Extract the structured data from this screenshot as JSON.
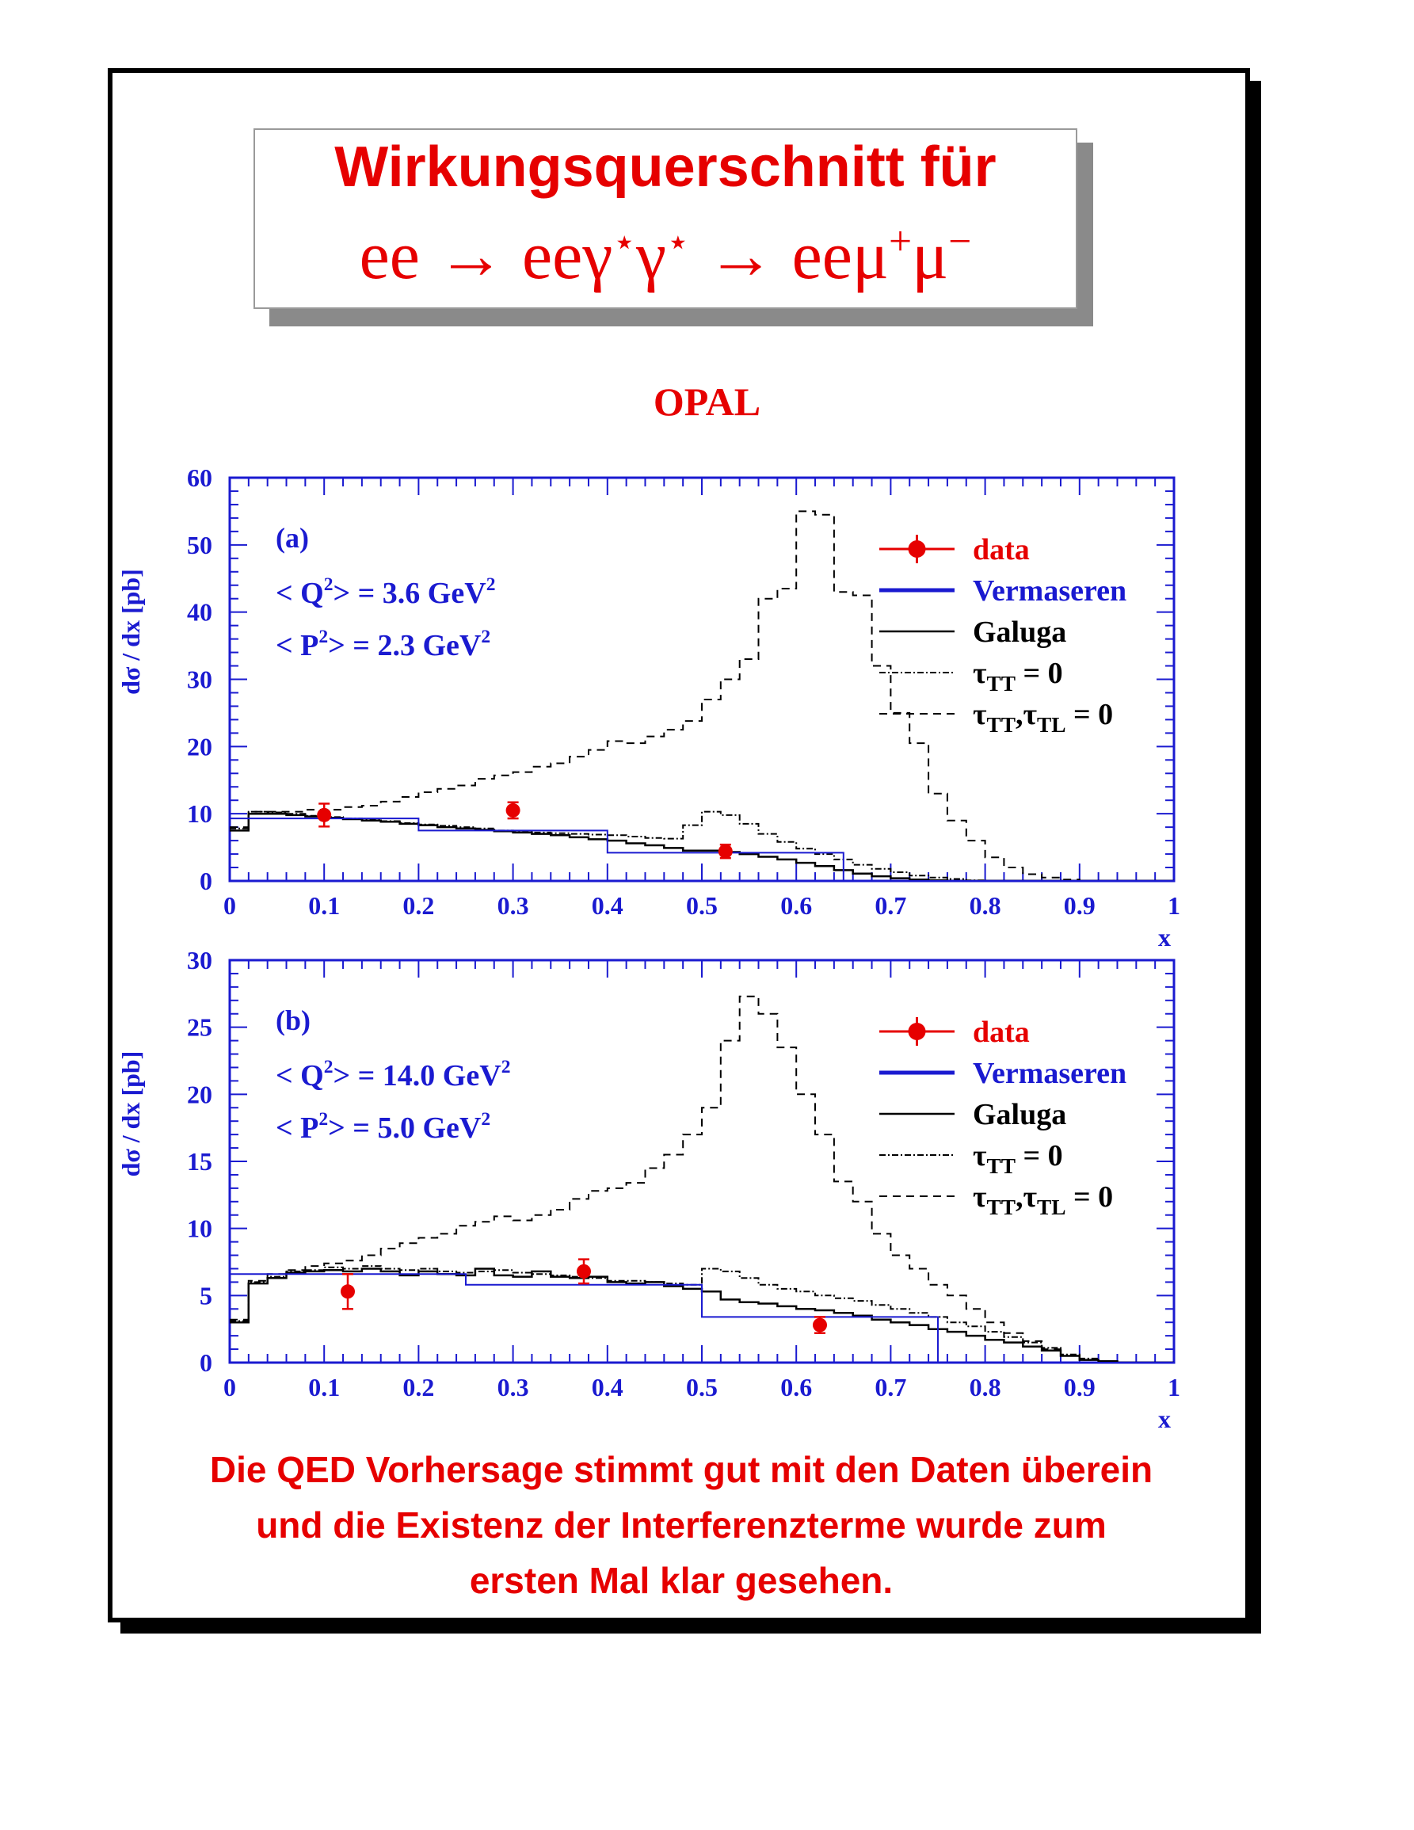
{
  "title": {
    "line1": "Wirkungsquerschnitt für",
    "line2_a": "ee → eeγ",
    "line2_b": "γ",
    "line2_c": " → eeμ",
    "line2_d": "μ",
    "star": "⋆",
    "mu_plus": "+",
    "mu_minus": "−"
  },
  "experiment": "OPAL",
  "footer": [
    "Die QED Vorhersage stimmt gut mit den Daten überein",
    "und die Existenz der Interferenzterme wurde zum",
    "ersten Mal klar gesehen."
  ],
  "legend": {
    "data": "data",
    "vermaseren": "Vermaseren",
    "galuga": "Galuga",
    "tt_tau": "τ",
    "tt_sub": "TT",
    "tt_eq": " = 0",
    "tl_tau1": "τ",
    "tl_sub1": "TT",
    "tl_comma": ",τ",
    "tl_sub2": "TL",
    "tl_eq": " = 0"
  },
  "colors": {
    "red": "#e60000",
    "blue": "#1a1ad0",
    "black": "#000000"
  },
  "chart_data": [
    {
      "type": "line",
      "panel": "(a)",
      "info": [
        {
          "pre": "< Q",
          "sup": "2",
          "post": "> = 3.6 GeV",
          "sup2": "2"
        },
        {
          "pre": "< P",
          "sup": "2",
          "post": "> = 2.3 GeV",
          "sup2": "2"
        }
      ],
      "xlabel": "x",
      "ylabel": "dσ / dx [pb]",
      "xlim": [
        0,
        1
      ],
      "ylim": [
        0,
        60
      ],
      "xticks": [
        "0",
        "0.1",
        "0.2",
        "0.3",
        "0.4",
        "0.5",
        "0.6",
        "0.7",
        "0.8",
        "0.9",
        "1"
      ],
      "yticks": [
        "0",
        "10",
        "20",
        "30",
        "40",
        "50",
        "60"
      ],
      "data_points": [
        {
          "x": 0.1,
          "y": 9.8,
          "err": 1.7
        },
        {
          "x": 0.3,
          "y": 10.5,
          "err": 1.2
        },
        {
          "x": 0.525,
          "y": 4.4,
          "err": 1.0
        }
      ],
      "vermaseren": {
        "edges": [
          0,
          0.2,
          0.4,
          0.65,
          1.0
        ],
        "values": [
          9.3,
          7.5,
          4.2,
          0.0
        ]
      },
      "hist_edges": [
        0,
        0.02,
        0.04,
        0.06,
        0.08,
        0.1,
        0.12,
        0.14,
        0.16,
        0.18,
        0.2,
        0.22,
        0.24,
        0.26,
        0.28,
        0.3,
        0.32,
        0.34,
        0.36,
        0.38,
        0.4,
        0.42,
        0.44,
        0.46,
        0.48,
        0.5,
        0.52,
        0.54,
        0.56,
        0.58,
        0.6,
        0.62,
        0.64,
        0.66,
        0.68,
        0.7,
        0.72,
        0.74,
        0.76,
        0.78,
        0.8,
        0.82,
        0.84,
        0.86,
        0.88,
        0.9,
        0.92,
        0.94,
        0.96,
        0.98,
        1.0
      ],
      "galuga": [
        7.5,
        10.0,
        10.0,
        9.8,
        9.6,
        9.4,
        9.2,
        9.0,
        8.8,
        8.5,
        8.3,
        8.0,
        7.8,
        7.6,
        7.4,
        7.2,
        7.0,
        6.8,
        6.5,
        6.2,
        6.0,
        5.6,
        5.3,
        4.9,
        4.5,
        4.5,
        4.3,
        4.0,
        3.6,
        3.2,
        2.7,
        2.2,
        1.6,
        1.1,
        0.7,
        0.4,
        0.2,
        0.1,
        0.0,
        0.0,
        0.0,
        0.0,
        0.0,
        0.0,
        0.0,
        0.0,
        0.0,
        0.0,
        0.0,
        0.0
      ],
      "tau_tt": [
        7.8,
        10.3,
        10.2,
        10.0,
        9.7,
        9.5,
        9.3,
        9.1,
        8.9,
        8.6,
        8.4,
        8.2,
        8.0,
        7.8,
        7.5,
        7.3,
        7.2,
        7.1,
        7.0,
        6.9,
        6.8,
        6.6,
        6.4,
        6.3,
        8.3,
        10.3,
        9.8,
        8.5,
        7.0,
        5.8,
        4.8,
        4.0,
        3.2,
        2.4,
        1.8,
        1.3,
        0.8,
        0.5,
        0.3,
        0.1,
        0.0,
        0.0,
        0.0,
        0.0,
        0.0,
        0.0,
        0.0,
        0.0,
        0.0,
        0.0
      ],
      "tau_tt_tl": [
        8.0,
        10.3,
        10.3,
        10.3,
        10.6,
        10.6,
        11.0,
        11.2,
        11.8,
        12.5,
        13.2,
        13.7,
        14.2,
        15.2,
        15.7,
        16.2,
        17.0,
        17.5,
        18.5,
        19.5,
        20.8,
        20.5,
        21.5,
        22.5,
        23.8,
        27.0,
        30.0,
        33.0,
        42.0,
        43.5,
        55.0,
        54.5,
        43.0,
        42.5,
        32.0,
        25.0,
        20.5,
        13.0,
        9.0,
        6.0,
        3.5,
        2.0,
        1.0,
        0.5,
        0.2,
        0.0,
        0.0,
        0.0,
        0.0,
        0.0
      ]
    },
    {
      "type": "line",
      "panel": "(b)",
      "info": [
        {
          "pre": "< Q",
          "sup": "2",
          "post": "> = 14.0 GeV",
          "sup2": "2"
        },
        {
          "pre": "< P",
          "sup": "2",
          "post": "> =  5.0 GeV",
          "sup2": "2"
        }
      ],
      "xlabel": "x",
      "ylabel": "dσ / dx [pb]",
      "xlim": [
        0,
        1
      ],
      "ylim": [
        0,
        30
      ],
      "xticks": [
        "0",
        "0.1",
        "0.2",
        "0.3",
        "0.4",
        "0.5",
        "0.6",
        "0.7",
        "0.8",
        "0.9",
        "1"
      ],
      "yticks": [
        "0",
        "5",
        "10",
        "15",
        "20",
        "25",
        "30"
      ],
      "data_points": [
        {
          "x": 0.125,
          "y": 5.3,
          "err": 1.3
        },
        {
          "x": 0.375,
          "y": 6.8,
          "err": 0.9
        },
        {
          "x": 0.625,
          "y": 2.8,
          "err": 0.6
        }
      ],
      "vermaseren": {
        "edges": [
          0,
          0.25,
          0.5,
          0.75,
          1.0
        ],
        "values": [
          6.6,
          5.8,
          3.4,
          0.0
        ]
      },
      "hist_edges": [
        0,
        0.02,
        0.04,
        0.06,
        0.08,
        0.1,
        0.12,
        0.14,
        0.16,
        0.18,
        0.2,
        0.22,
        0.24,
        0.26,
        0.28,
        0.3,
        0.32,
        0.34,
        0.36,
        0.38,
        0.4,
        0.42,
        0.44,
        0.46,
        0.48,
        0.5,
        0.52,
        0.54,
        0.56,
        0.58,
        0.6,
        0.62,
        0.64,
        0.66,
        0.68,
        0.7,
        0.72,
        0.74,
        0.76,
        0.78,
        0.8,
        0.82,
        0.84,
        0.86,
        0.88,
        0.9,
        0.92,
        0.94,
        0.96,
        0.98,
        1.0
      ],
      "galuga": [
        3.0,
        5.9,
        6.3,
        6.7,
        6.8,
        6.9,
        6.8,
        7.0,
        6.8,
        6.5,
        6.8,
        6.6,
        6.5,
        7.0,
        6.5,
        6.4,
        6.8,
        6.4,
        6.3,
        6.4,
        6.0,
        5.9,
        6.0,
        5.7,
        5.5,
        5.3,
        4.7,
        4.5,
        4.4,
        4.2,
        4.0,
        3.9,
        3.7,
        3.5,
        3.2,
        3.0,
        2.8,
        2.5,
        2.3,
        2.0,
        1.7,
        1.5,
        1.2,
        0.9,
        0.5,
        0.2,
        0.1,
        0.0,
        0.0,
        0.0
      ],
      "tau_tt": [
        3.1,
        6.0,
        6.4,
        6.8,
        6.9,
        7.1,
        7.0,
        7.2,
        7.0,
        6.9,
        7.0,
        6.8,
        6.7,
        6.8,
        6.9,
        6.7,
        6.6,
        6.5,
        6.4,
        6.3,
        6.1,
        6.1,
        6.0,
        5.9,
        5.8,
        7.0,
        6.8,
        6.3,
        5.8,
        5.5,
        5.3,
        5.0,
        4.8,
        4.6,
        4.3,
        4.0,
        3.7,
        3.4,
        3.0,
        2.7,
        2.3,
        1.9,
        1.5,
        1.1,
        0.6,
        0.3,
        0.1,
        0.0,
        0.0,
        0.0
      ],
      "tau_tt_tl": [
        3.2,
        6.1,
        6.6,
        6.9,
        7.2,
        7.4,
        7.6,
        8.0,
        8.5,
        8.9,
        9.3,
        9.6,
        10.2,
        10.5,
        10.9,
        10.6,
        11.0,
        11.4,
        12.2,
        12.8,
        13.0,
        13.4,
        14.5,
        15.5,
        17.0,
        19.0,
        24.0,
        27.3,
        26.0,
        23.5,
        20.0,
        17.0,
        13.5,
        12.0,
        9.6,
        8.0,
        7.0,
        5.8,
        5.0,
        4.0,
        3.0,
        2.2,
        1.6,
        1.0,
        0.5,
        0.2,
        0.1,
        0.0,
        0.0,
        0.0
      ]
    }
  ]
}
